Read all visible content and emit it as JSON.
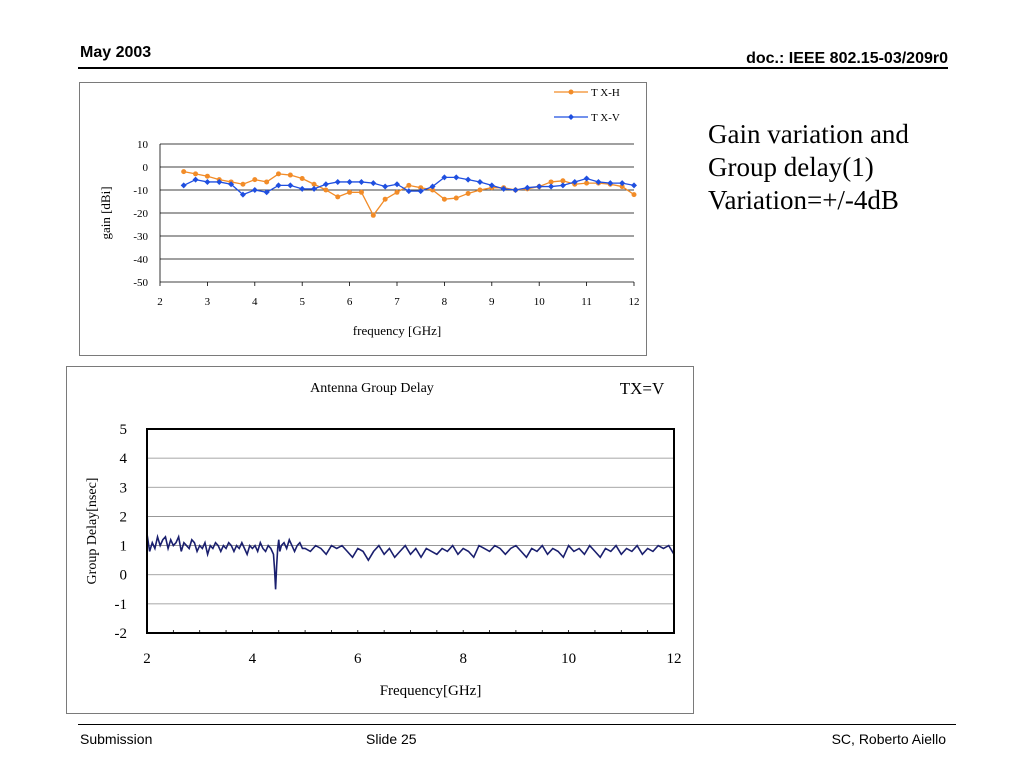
{
  "header": {
    "date": "May 2003",
    "doc": "doc.: IEEE 802.15-03/209r0"
  },
  "footer": {
    "left": "Submission",
    "center": "Slide 25",
    "right": "SC, Roberto Aiello"
  },
  "side_text": {
    "line1": "Gain variation and",
    "line2": "Group delay(1)",
    "line3": "Variation=+/-4dB"
  },
  "chart_data": [
    {
      "type": "line",
      "title": "",
      "xlabel": "frequency [GHz]",
      "ylabel": "gain [dBi]",
      "xlim": [
        2,
        12
      ],
      "ylim": [
        -50,
        10
      ],
      "xticks": [
        2,
        3,
        4,
        5,
        6,
        7,
        8,
        9,
        10,
        11,
        12
      ],
      "yticks": [
        10,
        0,
        -10,
        -20,
        -30,
        -40,
        -50
      ],
      "grid": "horizontal",
      "legend": "top-right",
      "series": [
        {
          "name": "T X-H",
          "color": "#f28c28",
          "marker": "circle",
          "x": [
            2.5,
            2.75,
            3.0,
            3.25,
            3.5,
            3.75,
            4.0,
            4.25,
            4.5,
            4.75,
            5.0,
            5.25,
            5.5,
            5.75,
            6.0,
            6.25,
            6.5,
            6.75,
            7.0,
            7.25,
            7.5,
            7.75,
            8.0,
            8.25,
            8.5,
            8.75,
            9.0,
            9.25,
            9.5,
            9.75,
            10.0,
            10.25,
            10.5,
            10.75,
            11.0,
            11.25,
            11.5,
            11.75,
            12.0
          ],
          "y": [
            -2,
            -3,
            -4,
            -5.5,
            -6.5,
            -7.5,
            -5.5,
            -6.5,
            -3,
            -3.5,
            -5,
            -7.5,
            -10,
            -13,
            -11,
            -11,
            -21,
            -14,
            -11,
            -8,
            -9,
            -10,
            -14,
            -13.5,
            -11.5,
            -10,
            -9,
            -9,
            -10,
            -9.5,
            -8.5,
            -6.5,
            -6,
            -7.5,
            -7,
            -7,
            -7.5,
            -8.5,
            -12
          ]
        },
        {
          "name": "T X-V",
          "color": "#1f4fe0",
          "marker": "diamond",
          "x": [
            2.5,
            2.75,
            3.0,
            3.25,
            3.5,
            3.75,
            4.0,
            4.25,
            4.5,
            4.75,
            5.0,
            5.25,
            5.5,
            5.75,
            6.0,
            6.25,
            6.5,
            6.75,
            7.0,
            7.25,
            7.5,
            7.75,
            8.0,
            8.25,
            8.5,
            8.75,
            9.0,
            9.25,
            9.5,
            9.75,
            10.0,
            10.25,
            10.5,
            10.75,
            11.0,
            11.25,
            11.5,
            11.75,
            12.0
          ],
          "y": [
            -8,
            -5.5,
            -6.5,
            -6.5,
            -7.5,
            -12,
            -10,
            -11,
            -8,
            -8,
            -9.5,
            -9.5,
            -7.5,
            -6.5,
            -6.5,
            -6.5,
            -7,
            -8.5,
            -7.5,
            -10.5,
            -10.5,
            -8.5,
            -4.5,
            -4.5,
            -5.5,
            -6.5,
            -8,
            -9.5,
            -10,
            -9,
            -8.5,
            -8.5,
            -8,
            -6.5,
            -5,
            -6.5,
            -7,
            -7,
            -8
          ]
        }
      ]
    },
    {
      "type": "line",
      "title": "Antenna Group Delay",
      "annotation": "TX=V",
      "xlabel": "Frequency[GHz]",
      "ylabel": "Group Delay[nsec]",
      "xlim": [
        2,
        12
      ],
      "ylim": [
        -2,
        5
      ],
      "xticks": [
        2,
        4,
        6,
        8,
        10,
        12
      ],
      "yticks": [
        5,
        4,
        3,
        2,
        1,
        0,
        -1,
        -2
      ],
      "grid": "horizontal",
      "legend": "none",
      "series": [
        {
          "color": "#1a1f6e",
          "x": [
            2.0,
            2.05,
            2.1,
            2.15,
            2.2,
            2.25,
            2.3,
            2.35,
            2.4,
            2.45,
            2.5,
            2.55,
            2.6,
            2.65,
            2.7,
            2.75,
            2.8,
            2.85,
            2.9,
            2.95,
            3.0,
            3.05,
            3.1,
            3.15,
            3.2,
            3.25,
            3.3,
            3.35,
            3.4,
            3.45,
            3.5,
            3.55,
            3.6,
            3.65,
            3.7,
            3.75,
            3.8,
            3.85,
            3.9,
            3.95,
            4.0,
            4.05,
            4.1,
            4.15,
            4.2,
            4.25,
            4.3,
            4.35,
            4.4,
            4.42,
            4.44,
            4.46,
            4.48,
            4.5,
            4.52,
            4.55,
            4.6,
            4.65,
            4.7,
            4.75,
            4.8,
            4.85,
            4.9,
            4.95,
            5.0,
            5.1,
            5.2,
            5.3,
            5.4,
            5.5,
            5.6,
            5.7,
            5.8,
            5.9,
            6.0,
            6.1,
            6.2,
            6.3,
            6.4,
            6.5,
            6.6,
            6.7,
            6.8,
            6.9,
            7.0,
            7.1,
            7.2,
            7.3,
            7.4,
            7.5,
            7.6,
            7.7,
            7.8,
            7.9,
            8.0,
            8.1,
            8.2,
            8.3,
            8.4,
            8.5,
            8.6,
            8.7,
            8.8,
            8.9,
            9.0,
            9.1,
            9.2,
            9.3,
            9.4,
            9.5,
            9.6,
            9.7,
            9.8,
            9.9,
            10.0,
            10.1,
            10.2,
            10.3,
            10.4,
            10.5,
            10.6,
            10.7,
            10.8,
            10.9,
            11.0,
            11.1,
            11.2,
            11.3,
            11.4,
            11.5,
            11.6,
            11.7,
            11.8,
            11.9,
            12.0
          ],
          "y": [
            1.4,
            0.8,
            1.1,
            0.9,
            1.3,
            1.0,
            1.2,
            1.3,
            0.9,
            1.2,
            1.0,
            1.1,
            1.3,
            0.8,
            1.1,
            1.0,
            0.9,
            1.2,
            1.1,
            0.8,
            1.0,
            0.9,
            1.1,
            0.7,
            1.0,
            0.9,
            1.1,
            1.0,
            0.8,
            1.0,
            0.9,
            1.1,
            1.0,
            0.8,
            1.0,
            0.9,
            1.1,
            0.9,
            0.7,
            1.0,
            0.9,
            1.0,
            0.8,
            1.1,
            0.9,
            0.8,
            1.0,
            0.9,
            0.7,
            0.2,
            -0.5,
            0.3,
            0.9,
            1.2,
            0.8,
            1.0,
            1.1,
            0.9,
            1.2,
            1.0,
            0.8,
            1.0,
            1.1,
            0.9,
            0.9,
            0.8,
            1.0,
            0.9,
            0.7,
            1.0,
            0.9,
            1.0,
            0.8,
            0.6,
            0.9,
            0.8,
            0.5,
            0.8,
            1.0,
            0.7,
            0.9,
            0.6,
            0.8,
            1.0,
            0.7,
            0.9,
            0.6,
            0.9,
            0.8,
            0.7,
            0.9,
            0.8,
            1.0,
            0.7,
            0.9,
            0.8,
            0.6,
            1.0,
            0.9,
            0.8,
            1.0,
            0.9,
            0.7,
            0.9,
            1.0,
            0.8,
            0.6,
            0.9,
            0.8,
            1.0,
            0.7,
            0.9,
            0.8,
            0.6,
            1.0,
            0.8,
            0.9,
            0.7,
            1.0,
            0.8,
            0.6,
            0.9,
            0.8,
            1.0,
            0.7,
            0.9,
            0.8,
            1.0,
            0.7,
            0.9,
            0.8,
            1.0,
            0.9,
            1.0,
            0.7
          ]
        }
      ]
    }
  ]
}
